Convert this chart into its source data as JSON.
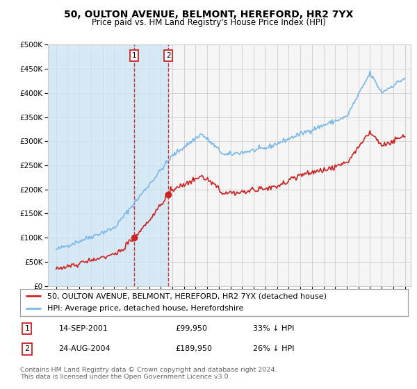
{
  "title": "50, OULTON AVENUE, BELMONT, HEREFORD, HR2 7YX",
  "subtitle": "Price paid vs. HM Land Registry's House Price Index (HPI)",
  "ylim": [
    0,
    500000
  ],
  "yticks": [
    0,
    50000,
    100000,
    150000,
    200000,
    250000,
    300000,
    350000,
    400000,
    450000,
    500000
  ],
  "ytick_labels": [
    "£0",
    "£50K",
    "£100K",
    "£150K",
    "£200K",
    "£250K",
    "£300K",
    "£350K",
    "£400K",
    "£450K",
    "£500K"
  ],
  "hpi_color": "#7ab8e8",
  "house_color": "#cc2222",
  "sale1_date": 2001.71,
  "sale1_price": 99950,
  "sale1_label": "1",
  "sale2_date": 2004.65,
  "sale2_price": 189950,
  "sale2_label": "2",
  "legend_house": "50, OULTON AVENUE, BELMONT, HEREFORD, HR2 7YX (detached house)",
  "legend_hpi": "HPI: Average price, detached house, Herefordshire",
  "footer": "Contains HM Land Registry data © Crown copyright and database right 2024.\nThis data is licensed under the Open Government Licence v3.0.",
  "background_color": "#ffffff",
  "plot_bg_color": "#f5f5f5",
  "shade_color": "#cce4f7",
  "shade_alpha": 0.7,
  "grid_color": "#cccccc",
  "title_fontsize": 10,
  "subtitle_fontsize": 8.5,
  "tick_fontsize": 7.5,
  "legend_fontsize": 8,
  "footer_fontsize": 6.8,
  "xlim_left": 1994.3,
  "xlim_right": 2025.5
}
